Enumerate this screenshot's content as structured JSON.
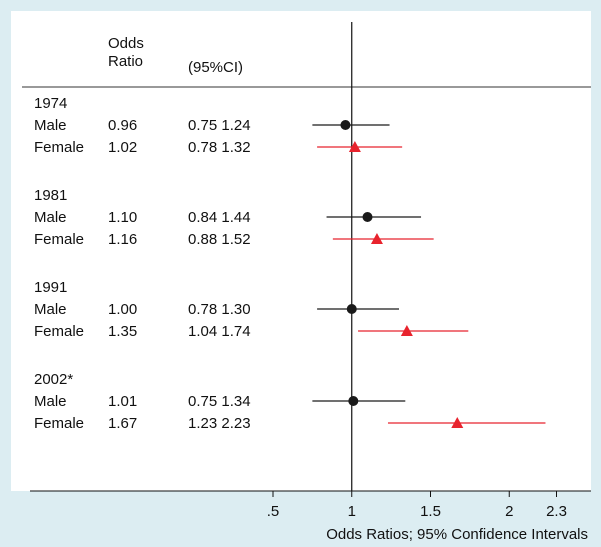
{
  "chart_data": {
    "type": "forest",
    "column_headers": {
      "or": "Odds\nRatio",
      "ci": "(95%CI)"
    },
    "groups": [
      {
        "year": "1974",
        "rows": [
          {
            "label": "Male",
            "or_text": "0.96",
            "ci_text": "0.75 1.24",
            "or": 0.96,
            "lo": 0.75,
            "hi": 1.24,
            "marker": "circle"
          },
          {
            "label": "Female",
            "or_text": "1.02",
            "ci_text": "0.78 1.32",
            "or": 1.02,
            "lo": 0.78,
            "hi": 1.32,
            "marker": "triangle"
          }
        ]
      },
      {
        "year": "1981",
        "rows": [
          {
            "label": "Male",
            "or_text": "1.10",
            "ci_text": "0.84 1.44",
            "or": 1.1,
            "lo": 0.84,
            "hi": 1.44,
            "marker": "circle"
          },
          {
            "label": "Female",
            "or_text": "1.16",
            "ci_text": "0.88 1.52",
            "or": 1.16,
            "lo": 0.88,
            "hi": 1.52,
            "marker": "triangle"
          }
        ]
      },
      {
        "year": "1991",
        "rows": [
          {
            "label": "Male",
            "or_text": "1.00",
            "ci_text": "0.78 1.30",
            "or": 1.0,
            "lo": 0.78,
            "hi": 1.3,
            "marker": "circle"
          },
          {
            "label": "Female",
            "or_text": "1.35",
            "ci_text": "1.04 1.74",
            "or": 1.35,
            "lo": 1.04,
            "hi": 1.74,
            "marker": "triangle"
          }
        ]
      },
      {
        "year": "2002*",
        "rows": [
          {
            "label": "Male",
            "or_text": "1.01",
            "ci_text": "0.75 1.34",
            "or": 1.01,
            "lo": 0.75,
            "hi": 1.34,
            "marker": "circle"
          },
          {
            "label": "Female",
            "or_text": "1.67",
            "ci_text": "1.23 2.23",
            "or": 1.67,
            "lo": 1.23,
            "hi": 2.23,
            "marker": "triangle"
          }
        ]
      }
    ],
    "x_ticks": [
      {
        "value": 0.5,
        "label": ".5"
      },
      {
        "value": 1,
        "label": "1"
      },
      {
        "value": 1.5,
        "label": "1.5"
      },
      {
        "value": 2,
        "label": "2"
      },
      {
        "value": 2.3,
        "label": "2.3"
      }
    ],
    "reference_value": 1,
    "xlabel": "Odds Ratios; 95% Confidence Intervals",
    "colors": {
      "male": "#1a1a1a",
      "female": "#e8232d",
      "background": "#dcedf2",
      "panel": "#ffffff"
    }
  }
}
